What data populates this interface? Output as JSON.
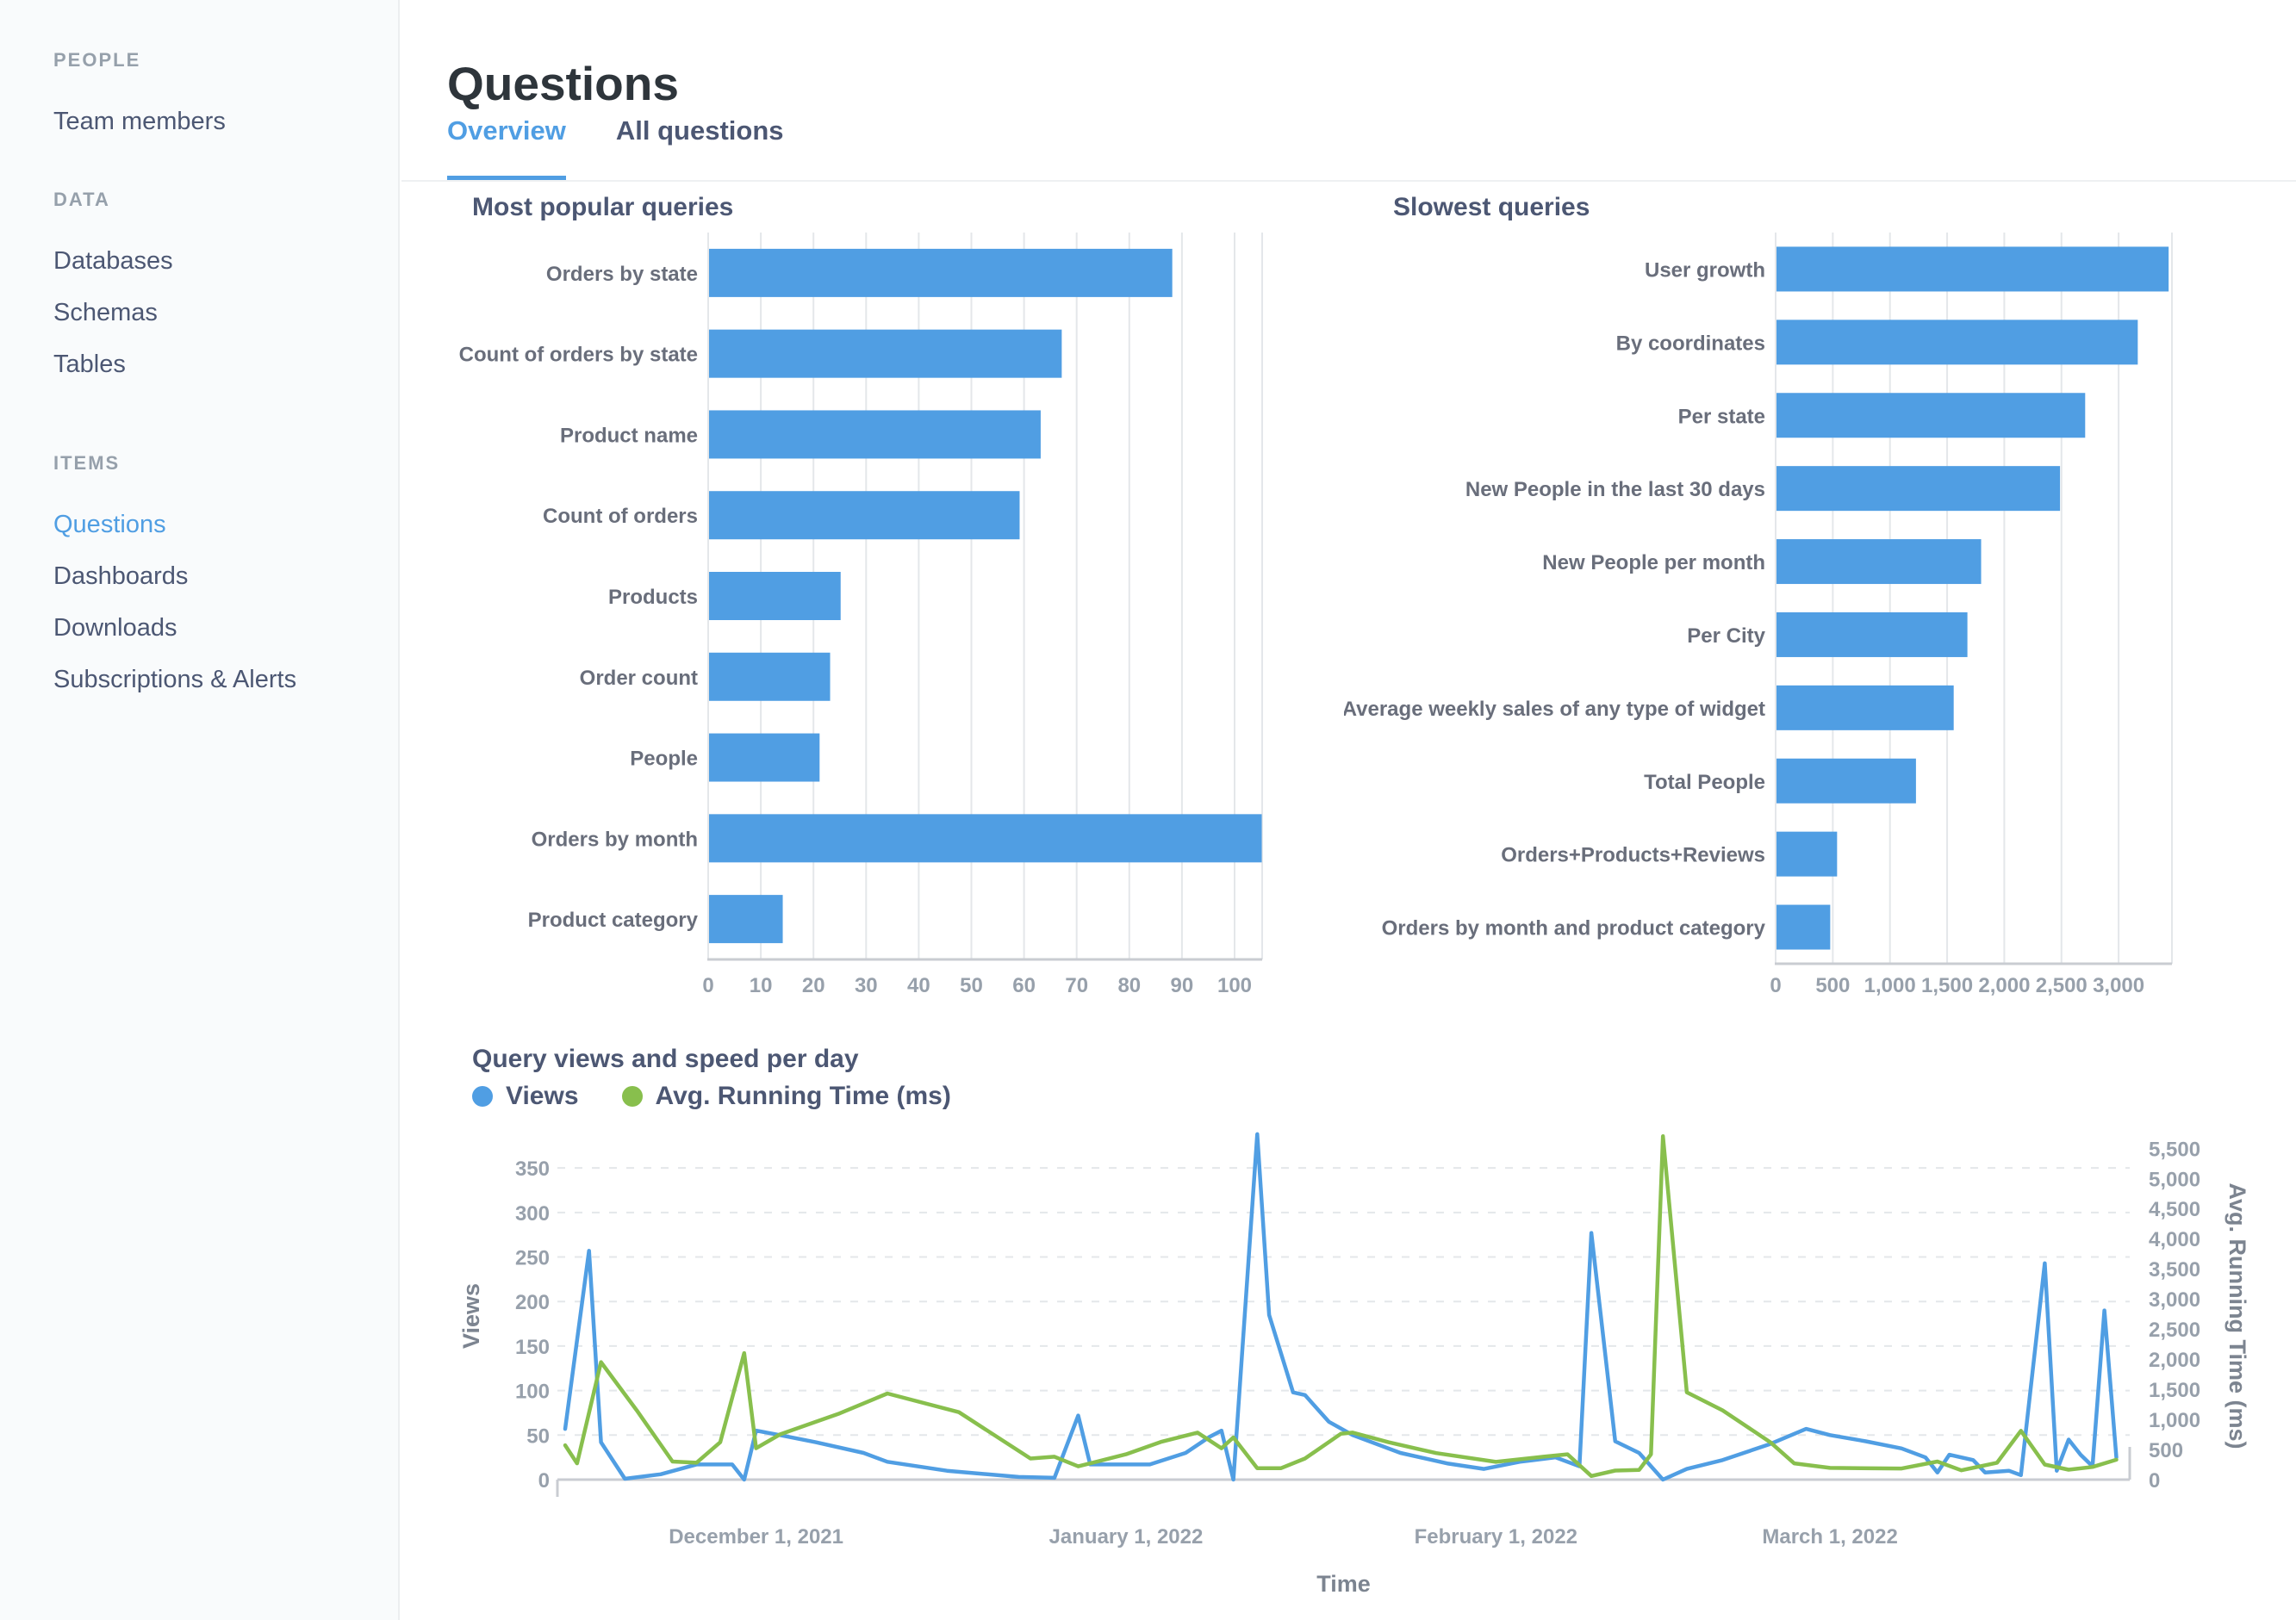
{
  "colors": {
    "accent_blue": "#509ee3",
    "accent_green": "#88bf4d",
    "grid": "#e4e7ea",
    "axis": "#c9ccd2"
  },
  "sidebar": {
    "sections": [
      {
        "header": "PEOPLE",
        "items": [
          {
            "label": "Team members",
            "active": false
          }
        ]
      },
      {
        "header": "DATA",
        "items": [
          {
            "label": "Databases",
            "active": false
          },
          {
            "label": "Schemas",
            "active": false
          },
          {
            "label": "Tables",
            "active": false
          }
        ]
      },
      {
        "header": "ITEMS",
        "items": [
          {
            "label": "Questions",
            "active": true
          },
          {
            "label": "Dashboards",
            "active": false
          },
          {
            "label": "Downloads",
            "active": false
          },
          {
            "label": "Subscriptions & Alerts",
            "active": false
          }
        ]
      }
    ]
  },
  "header": {
    "title": "Questions",
    "tabs": [
      {
        "label": "Overview",
        "active": true
      },
      {
        "label": "All questions",
        "active": false
      }
    ]
  },
  "chart_data": [
    {
      "id": "popular",
      "type": "bar",
      "orientation": "horizontal",
      "title": "Most popular queries",
      "categories": [
        "Orders by state",
        "Count of orders by state",
        "Product name",
        "Count of orders",
        "Products",
        "Order count",
        "People",
        "Orders by month",
        "Product category"
      ],
      "values": [
        88,
        67,
        63,
        59,
        25,
        23,
        21,
        105,
        14
      ],
      "bar_color": "#509ee3",
      "xlim": [
        0,
        105
      ],
      "x_ticks": [
        0,
        10,
        20,
        30,
        40,
        50,
        60,
        70,
        80,
        90,
        100
      ],
      "grid": true
    },
    {
      "id": "slowest",
      "type": "bar",
      "orientation": "horizontal",
      "title": "Slowest queries",
      "categories": [
        "User growth",
        "By coordinates",
        "Per state",
        "New People in the last 30 days",
        "New People per month",
        "Per City",
        "Average weekly sales of any type of widget",
        "Total People",
        "Orders+Products+Reviews",
        "Orders by month and product category"
      ],
      "values": [
        3430,
        3160,
        2700,
        2480,
        1790,
        1670,
        1550,
        1220,
        530,
        470
      ],
      "bar_color": "#509ee3",
      "xlim": [
        0,
        3470
      ],
      "x_ticks": [
        0,
        500,
        1000,
        1500,
        2000,
        2500,
        3000
      ],
      "grid": true
    },
    {
      "id": "views_speed",
      "type": "line",
      "title": "Query views and speed per day",
      "xlabel": "Time",
      "legend_position": "top-left",
      "x_unit": "day index along Time axis (ticks below give calendar anchors)",
      "x_ticks": [
        {
          "day": 16,
          "label": "December 1, 2021"
        },
        {
          "day": 47,
          "label": "January 1, 2022"
        },
        {
          "day": 78,
          "label": "February 1, 2022"
        },
        {
          "day": 106,
          "label": "March 1, 2022"
        }
      ],
      "left_axis": {
        "label": "Views",
        "ticks": [
          0,
          50,
          100,
          150,
          200,
          250,
          300,
          350
        ],
        "max": 385
      },
      "right_axis": {
        "label": "Avg. Running Time (ms)",
        "ticks": [
          0,
          500,
          1000,
          1500,
          2000,
          2500,
          3000,
          3500,
          4000,
          4500,
          5000,
          5500
        ],
        "max": 5690
      },
      "series": [
        {
          "name": "Views",
          "color": "#509ee3",
          "axis": "left",
          "points": [
            [
              0,
              57
            ],
            [
              2,
              257
            ],
            [
              3,
              42
            ],
            [
              5,
              1
            ],
            [
              8,
              6
            ],
            [
              11,
              17
            ],
            [
              14,
              17
            ],
            [
              15,
              0
            ],
            [
              16,
              55
            ],
            [
              18,
              50
            ],
            [
              21,
              42
            ],
            [
              25,
              30
            ],
            [
              27,
              20
            ],
            [
              32,
              10
            ],
            [
              38,
              3
            ],
            [
              41,
              2
            ],
            [
              43,
              72
            ],
            [
              44,
              17
            ],
            [
              47,
              17
            ],
            [
              49,
              17
            ],
            [
              52,
              30
            ],
            [
              54,
              48
            ],
            [
              55,
              55
            ],
            [
              56,
              0
            ],
            [
              58,
              388
            ],
            [
              59,
              185
            ],
            [
              61,
              98
            ],
            [
              62,
              95
            ],
            [
              64,
              65
            ],
            [
              66,
              50
            ],
            [
              70,
              30
            ],
            [
              74,
              18
            ],
            [
              77,
              12
            ],
            [
              80,
              20
            ],
            [
              83,
              25
            ],
            [
              85,
              15
            ],
            [
              86,
              277
            ],
            [
              88,
              43
            ],
            [
              90,
              30
            ],
            [
              92,
              0
            ],
            [
              94,
              12
            ],
            [
              97,
              22
            ],
            [
              101,
              40
            ],
            [
              104,
              57
            ],
            [
              106,
              50
            ],
            [
              109,
              43
            ],
            [
              112,
              35
            ],
            [
              114,
              25
            ],
            [
              115,
              8
            ],
            [
              116,
              28
            ],
            [
              118,
              22
            ],
            [
              119,
              8
            ],
            [
              121,
              10
            ],
            [
              122,
              5
            ],
            [
              124,
              243
            ],
            [
              125,
              10
            ],
            [
              126,
              45
            ],
            [
              127,
              28
            ],
            [
              128,
              15
            ],
            [
              129,
              190
            ],
            [
              130,
              25
            ]
          ]
        },
        {
          "name": "Avg. Running Time (ms)",
          "color": "#88bf4d",
          "axis": "right",
          "points": [
            [
              0,
              570
            ],
            [
              1,
              270
            ],
            [
              3,
              1950
            ],
            [
              6,
              1150
            ],
            [
              9,
              300
            ],
            [
              11,
              280
            ],
            [
              13,
              620
            ],
            [
              15,
              2100
            ],
            [
              16,
              520
            ],
            [
              18,
              750
            ],
            [
              23,
              1100
            ],
            [
              27,
              1430
            ],
            [
              33,
              1120
            ],
            [
              39,
              350
            ],
            [
              41,
              380
            ],
            [
              43,
              220
            ],
            [
              47,
              420
            ],
            [
              50,
              630
            ],
            [
              53,
              780
            ],
            [
              55,
              520
            ],
            [
              56,
              700
            ],
            [
              58,
              190
            ],
            [
              60,
              190
            ],
            [
              62,
              350
            ],
            [
              65,
              760
            ],
            [
              66,
              780
            ],
            [
              69,
              620
            ],
            [
              73,
              440
            ],
            [
              78,
              295
            ],
            [
              82,
              380
            ],
            [
              84,
              420
            ],
            [
              86,
              60
            ],
            [
              88,
              150
            ],
            [
              90,
              160
            ],
            [
              91,
              420
            ],
            [
              92,
              5700
            ],
            [
              94,
              1450
            ],
            [
              97,
              1150
            ],
            [
              101,
              620
            ],
            [
              103,
              270
            ],
            [
              106,
              195
            ],
            [
              112,
              185
            ],
            [
              115,
              300
            ],
            [
              117,
              155
            ],
            [
              120,
              280
            ],
            [
              122,
              810
            ],
            [
              124,
              250
            ],
            [
              126,
              165
            ],
            [
              128,
              210
            ],
            [
              130,
              330
            ]
          ]
        }
      ]
    }
  ]
}
